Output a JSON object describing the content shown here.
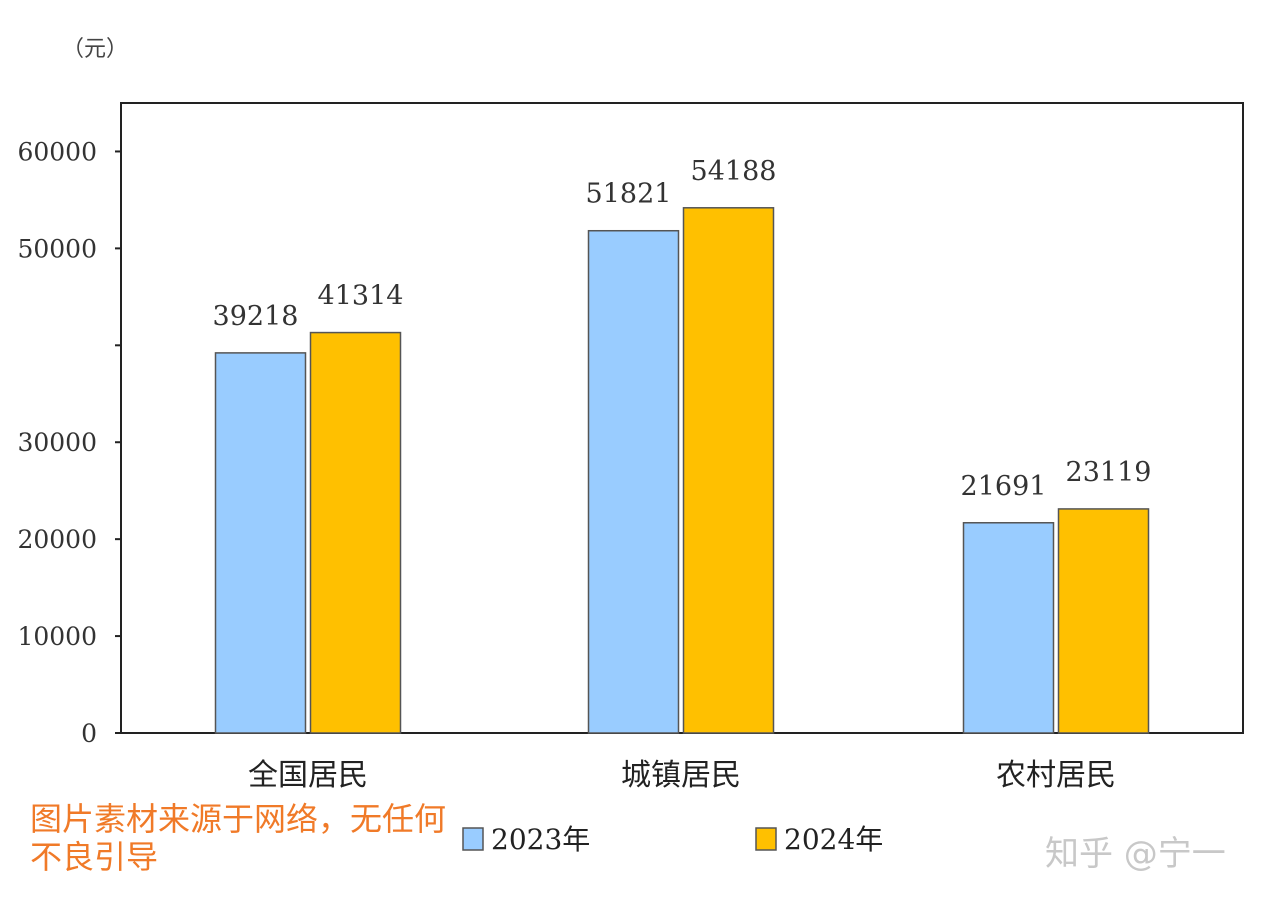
{
  "chart_data": {
    "type": "bar",
    "unit_label": "（元）",
    "categories": [
      "全国居民",
      "城镇居民",
      "农村居民"
    ],
    "series": [
      {
        "name": "2023年",
        "color": "#99ccff",
        "values": [
          39218,
          51821,
          21691
        ]
      },
      {
        "name": "2024年",
        "color": "#ffc000",
        "values": [
          41314,
          54188,
          23119
        ]
      }
    ],
    "ylim": [
      0,
      65000
    ],
    "yticks": [
      0,
      10000,
      20000,
      30000,
      40000,
      50000,
      60000
    ],
    "ytick_labels": [
      "0",
      "10000",
      "20000",
      "30000",
      "",
      "50000",
      "60000"
    ],
    "legend": "bottom-center"
  },
  "watermark": {
    "text": "图片素材来源于网络，无任何不良引导"
  },
  "credit": {
    "text": "知乎 @宁一"
  }
}
